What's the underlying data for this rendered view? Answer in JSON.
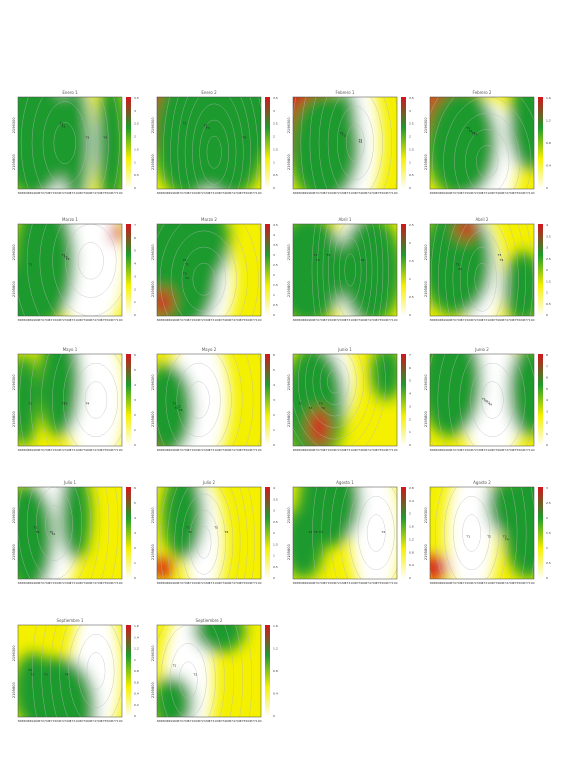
{
  "figure": {
    "colors": {
      "red": "#d4141c",
      "green": "#1e9a2d",
      "yellow": "#f4f000",
      "white": "#ffffff",
      "contour": "#b8b8b8"
    },
    "colorbar_stops": [
      "#d4141c",
      "#1e9a2d",
      "#f4f000",
      "#ffffff"
    ]
  },
  "chart_data": [
    {
      "type": "heatmap",
      "title": "Enero 1",
      "yticks": [
        "2196300",
        "2195800"
      ],
      "xticks": [
        "368800",
        "369900",
        "370700",
        "371500",
        "372300",
        "373100",
        "373900",
        "374700",
        "375500",
        "377100"
      ],
      "cbar_ticks": [
        "3.5",
        "3",
        "2.5",
        "2",
        "1.5",
        "1",
        "0.5",
        "0"
      ],
      "cell_labels": [
        "T1",
        "T2",
        "T3",
        "T4"
      ]
    },
    {
      "type": "heatmap",
      "title": "Enero 2",
      "yticks": [
        "2196300",
        "2195800"
      ],
      "xticks": [
        "368800",
        "369900",
        "370700",
        "371500",
        "372300",
        "373100",
        "373900",
        "374700",
        "375500",
        "377100"
      ],
      "cbar_ticks": [
        "3.5",
        "3",
        "2.5",
        "2",
        "1.5",
        "1",
        "0.5",
        "0"
      ],
      "cell_labels": [
        "T1",
        "T2",
        "T3",
        "T4"
      ]
    },
    {
      "type": "heatmap",
      "title": "Febrero 1",
      "yticks": [
        "2196300",
        "2195800"
      ],
      "xticks": [
        "368800",
        "369900",
        "370700",
        "371500",
        "372300",
        "373100",
        "373900",
        "374700",
        "375500",
        "377100"
      ],
      "cbar_ticks": [
        "3.5",
        "3",
        "2.5",
        "2",
        "1.5",
        "1",
        "0.5",
        "0"
      ],
      "cell_labels": [
        "T1",
        "T2",
        "T3",
        "T4"
      ]
    },
    {
      "type": "heatmap",
      "title": "Febrero 2",
      "yticks": [
        "2196300",
        "2195800"
      ],
      "xticks": [
        "368800",
        "369900",
        "370700",
        "371500",
        "372300",
        "373100",
        "373900",
        "374700",
        "375500",
        "377100"
      ],
      "cbar_ticks": [
        "1.6",
        "1.2",
        "0.8",
        "0.4",
        "0"
      ],
      "cell_labels": [
        "T1",
        "T2",
        "T3",
        "T4"
      ]
    },
    {
      "type": "heatmap",
      "title": "Marzo 1",
      "yticks": [
        "2196300",
        "2195800"
      ],
      "xticks": [
        "368800",
        "369900",
        "370700",
        "371500",
        "372300",
        "373100",
        "373900",
        "374700",
        "375500",
        "377100"
      ],
      "cbar_ticks": [
        "7",
        "6",
        "5",
        "4",
        "3",
        "2",
        "1",
        "0"
      ],
      "cell_labels": [
        "T1",
        "T2",
        "T3",
        "T4"
      ]
    },
    {
      "type": "heatmap",
      "title": "Marzo 2",
      "yticks": [
        "2196300",
        "2195800"
      ],
      "xticks": [
        "368800",
        "369900",
        "370700",
        "371500",
        "372300",
        "373100",
        "373900",
        "374700",
        "375500",
        "377100"
      ],
      "cbar_ticks": [
        "4.5",
        "4",
        "3.5",
        "3",
        "2.5",
        "2",
        "1.5",
        "1",
        "0.5",
        "0"
      ],
      "cell_labels": [
        "T1",
        "T2",
        "T3",
        "T4"
      ]
    },
    {
      "type": "heatmap",
      "title": "Abril 1",
      "yticks": [
        "2196300",
        "2195800"
      ],
      "xticks": [
        "368800",
        "369900",
        "370700",
        "371500",
        "372300",
        "373100",
        "373900",
        "374700",
        "375500",
        "377100"
      ],
      "cbar_ticks": [
        "2.5",
        "2",
        "1.5",
        "1",
        "0.5",
        "0"
      ],
      "cell_labels": [
        "T1",
        "T2",
        "T3",
        "T4"
      ]
    },
    {
      "type": "heatmap",
      "title": "Abril 2",
      "yticks": [
        "2196300",
        "2195800"
      ],
      "xticks": [
        "368800",
        "369900",
        "370700",
        "371500",
        "372300",
        "373100",
        "373900",
        "374700",
        "375500",
        "377100"
      ],
      "cbar_ticks": [
        "4",
        "3.5",
        "3",
        "2.5",
        "2",
        "1.5",
        "1",
        "0.5",
        "0"
      ],
      "cell_labels": [
        "T1",
        "T2",
        "T3",
        "T4"
      ]
    },
    {
      "type": "heatmap",
      "title": "Mayo 1",
      "yticks": [
        "2196300",
        "2195800"
      ],
      "xticks": [
        "368800",
        "369900",
        "370700",
        "371500",
        "372300",
        "373100",
        "373900",
        "374700",
        "375500",
        "377100"
      ],
      "cbar_ticks": [
        "6",
        "5",
        "4",
        "3",
        "2",
        "1",
        "0"
      ],
      "cell_labels": [
        "T1",
        "T2",
        "T3",
        "T4"
      ]
    },
    {
      "type": "heatmap",
      "title": "Mayo 2",
      "yticks": [
        "2196300",
        "2195800"
      ],
      "xticks": [
        "368800",
        "369900",
        "370700",
        "371500",
        "372300",
        "373100",
        "373900",
        "374700",
        "375500",
        "377100"
      ],
      "cbar_ticks": [
        "6",
        "5",
        "4",
        "3",
        "2",
        "1",
        "0"
      ],
      "cell_labels": [
        "T1",
        "T2",
        "T3",
        "T4"
      ]
    },
    {
      "type": "heatmap",
      "title": "Junio 1",
      "yticks": [
        "2196300",
        "2195800"
      ],
      "xticks": [
        "368800",
        "369900",
        "370700",
        "371500",
        "372300",
        "373100",
        "373900",
        "374700",
        "375500",
        "377100"
      ],
      "cbar_ticks": [
        "7",
        "6",
        "5",
        "4",
        "3",
        "2",
        "1",
        "0"
      ],
      "cell_labels": [
        "T1",
        "T2",
        "T3",
        "T4"
      ]
    },
    {
      "type": "heatmap",
      "title": "Junio 2",
      "yticks": [
        "2196300",
        "2195800"
      ],
      "xticks": [
        "368800",
        "369900",
        "370700",
        "371500",
        "372300",
        "373100",
        "373900",
        "374700",
        "375500",
        "377100"
      ],
      "cbar_ticks": [
        "8",
        "7",
        "6",
        "5",
        "4",
        "3",
        "2",
        "1",
        "0"
      ],
      "cell_labels": [
        "T1",
        "T2",
        "T3",
        "T4"
      ]
    },
    {
      "type": "heatmap",
      "title": "Julio 1",
      "yticks": [
        "2196300",
        "2195800"
      ],
      "xticks": [
        "368800",
        "369900",
        "370700",
        "371500",
        "372300",
        "373100",
        "373900",
        "374700",
        "375500",
        "377100"
      ],
      "cbar_ticks": [
        "6",
        "5",
        "4",
        "3",
        "2",
        "1",
        "0"
      ],
      "cell_labels": [
        "T1",
        "T2",
        "T3",
        "T4"
      ]
    },
    {
      "type": "heatmap",
      "title": "Julio 2",
      "yticks": [
        "2196300",
        "2195800"
      ],
      "xticks": [
        "368800",
        "369900",
        "370700",
        "371500",
        "372300",
        "373100",
        "373900",
        "374700",
        "375500",
        "377100"
      ],
      "cbar_ticks": [
        "4",
        "3.5",
        "3",
        "2.5",
        "2",
        "1.5",
        "1",
        "0.5",
        "0"
      ],
      "cell_labels": [
        "T1",
        "T2",
        "T3",
        "T4"
      ]
    },
    {
      "type": "heatmap",
      "title": "Agosto 1",
      "yticks": [
        "2196300",
        "2195800"
      ],
      "xticks": [
        "368800",
        "369900",
        "370700",
        "371500",
        "372300",
        "373100",
        "373900",
        "374700",
        "375500",
        "377100"
      ],
      "cbar_ticks": [
        "2.8",
        "2.4",
        "2",
        "1.6",
        "1.2",
        "0.8",
        "0.4",
        "0"
      ],
      "cell_labels": [
        "T1",
        "T2",
        "T3",
        "T4"
      ]
    },
    {
      "type": "heatmap",
      "title": "Agosto 2",
      "yticks": [
        "2196300",
        "2195800"
      ],
      "xticks": [
        "368800",
        "369900",
        "370700",
        "371500",
        "372300",
        "373100",
        "373900",
        "374700",
        "375500",
        "377100"
      ],
      "cbar_ticks": [
        "3",
        "2.5",
        "2",
        "1.5",
        "1",
        "0.5",
        "0"
      ],
      "cell_labels": [
        "T1",
        "T2",
        "T3",
        "T4"
      ]
    },
    {
      "type": "heatmap",
      "title": "Septiembre 1",
      "yticks": [
        "2196300",
        "2195800"
      ],
      "xticks": [
        "368800",
        "369900",
        "370700",
        "371500",
        "372300",
        "373100",
        "373900",
        "374700",
        "375500",
        "377100"
      ],
      "cbar_ticks": [
        "1.6",
        "1.4",
        "1.2",
        "1",
        "0.8",
        "0.6",
        "0.4",
        "0.2",
        "0"
      ],
      "cell_labels": [
        "T1",
        "T2",
        "T3",
        "T4"
      ]
    },
    {
      "type": "heatmap",
      "title": "Septiembre 2",
      "yticks": [
        "2196300",
        "2195800"
      ],
      "xticks": [
        "368800",
        "369900",
        "370700",
        "371500",
        "372300",
        "373100",
        "373900",
        "374700",
        "375500",
        "377100"
      ],
      "cbar_ticks": [
        "1.6",
        "1.2",
        "0.8",
        "0.4",
        "0"
      ],
      "cell_labels": [
        "T1",
        "T2"
      ]
    }
  ]
}
